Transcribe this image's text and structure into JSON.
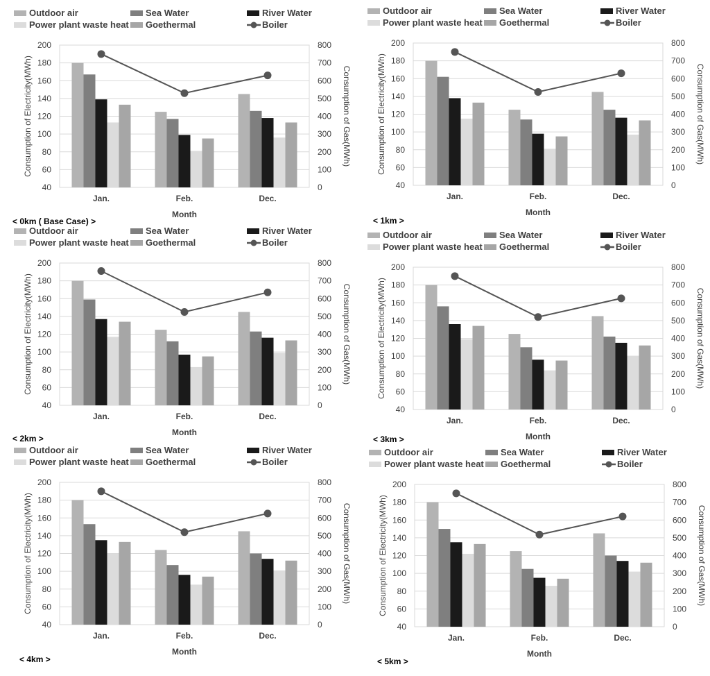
{
  "chart_data": [
    {
      "type": "bar",
      "panel_label": "< 0km ( Base Case) >",
      "categories": [
        "Jan.",
        "Feb.",
        "Dec."
      ],
      "xlabel": "Month",
      "ylabel": "Consumption of Electricity(MWh)",
      "ylabel_right": "Consumption of Gas(MWh)",
      "ylim": [
        40,
        200
      ],
      "ylim_right": [
        0,
        800
      ],
      "series": [
        {
          "name": "Outdoor air",
          "color": "#b3b3b3",
          "values": [
            180,
            125,
            145
          ]
        },
        {
          "name": "Sea Water",
          "color": "#7f7f7f",
          "values": [
            167,
            117,
            126
          ]
        },
        {
          "name": "River Water",
          "color": "#1a1a1a",
          "values": [
            139,
            99,
            118
          ]
        },
        {
          "name": "Power plant waste heat",
          "color": "#dcdcdc",
          "values": [
            113,
            81,
            96
          ]
        },
        {
          "name": "Goethermal",
          "color": "#a6a6a6",
          "values": [
            133,
            95,
            113
          ]
        }
      ],
      "line_series": {
        "name": "Boiler",
        "axis": "right",
        "color": "#555555",
        "values": [
          750,
          530,
          630
        ]
      }
    },
    {
      "type": "bar",
      "panel_label": "< 1km >",
      "categories": [
        "Jan.",
        "Feb.",
        "Dec."
      ],
      "xlabel": "Month",
      "ylabel": "Consumption of Electricity(MWh)",
      "ylabel_right": "Consumption of Gas(MWh)",
      "ylim": [
        40,
        200
      ],
      "ylim_right": [
        0,
        800
      ],
      "series": [
        {
          "name": "Outdoor air",
          "color": "#b3b3b3",
          "values": [
            180,
            125,
            145
          ]
        },
        {
          "name": "Sea Water",
          "color": "#7f7f7f",
          "values": [
            162,
            114,
            125
          ]
        },
        {
          "name": "River Water",
          "color": "#1a1a1a",
          "values": [
            138,
            98,
            116
          ]
        },
        {
          "name": "Power plant waste heat",
          "color": "#dcdcdc",
          "values": [
            115,
            81,
            97
          ]
        },
        {
          "name": "Goethermal",
          "color": "#a6a6a6",
          "values": [
            133,
            95,
            113
          ]
        }
      ],
      "line_series": {
        "name": "Boiler",
        "axis": "right",
        "color": "#555555",
        "values": [
          750,
          525,
          630
        ]
      }
    },
    {
      "type": "bar",
      "panel_label": "< 2km >",
      "categories": [
        "Jan.",
        "Feb.",
        "Dec."
      ],
      "xlabel": "Month",
      "ylabel": "Consumption of Electricity(MWh)",
      "ylabel_right": "Consumption of Gas(MWh)",
      "ylim": [
        40,
        200
      ],
      "ylim_right": [
        0,
        800
      ],
      "series": [
        {
          "name": "Outdoor air",
          "color": "#b3b3b3",
          "values": [
            180,
            125,
            145
          ]
        },
        {
          "name": "Sea Water",
          "color": "#7f7f7f",
          "values": [
            159,
            112,
            123
          ]
        },
        {
          "name": "River Water",
          "color": "#1a1a1a",
          "values": [
            137,
            97,
            116
          ]
        },
        {
          "name": "Power plant waste heat",
          "color": "#dcdcdc",
          "values": [
            117,
            83,
            99
          ]
        },
        {
          "name": "Goethermal",
          "color": "#a6a6a6",
          "values": [
            134,
            95,
            113
          ]
        }
      ],
      "line_series": {
        "name": "Boiler",
        "axis": "right",
        "color": "#555555",
        "values": [
          755,
          525,
          635
        ]
      }
    },
    {
      "type": "bar",
      "panel_label": "< 3km >",
      "categories": [
        "Jan.",
        "Feb.",
        "Dec."
      ],
      "xlabel": "Month",
      "ylabel": "Consumption of Electricity(MWh)",
      "ylabel_right": "Consumption of Gas(MWh)",
      "ylim": [
        40,
        200
      ],
      "ylim_right": [
        0,
        800
      ],
      "series": [
        {
          "name": "Outdoor air",
          "color": "#b3b3b3",
          "values": [
            180,
            125,
            145
          ]
        },
        {
          "name": "Sea Water",
          "color": "#7f7f7f",
          "values": [
            156,
            110,
            122
          ]
        },
        {
          "name": "River Water",
          "color": "#1a1a1a",
          "values": [
            136,
            96,
            115
          ]
        },
        {
          "name": "Power plant waste heat",
          "color": "#dcdcdc",
          "values": [
            119,
            84,
            100
          ]
        },
        {
          "name": "Goethermal",
          "color": "#a6a6a6",
          "values": [
            134,
            95,
            112
          ]
        }
      ],
      "line_series": {
        "name": "Boiler",
        "axis": "right",
        "color": "#555555",
        "values": [
          750,
          520,
          625
        ]
      }
    },
    {
      "type": "bar",
      "panel_label": "< 4km >",
      "categories": [
        "Jan.",
        "Feb.",
        "Dec."
      ],
      "xlabel": "Month",
      "ylabel": "Consumption of Electricity(MWh)",
      "ylabel_right": "Consumption of Gas(MWh)",
      "ylim": [
        40,
        200
      ],
      "ylim_right": [
        0,
        800
      ],
      "series": [
        {
          "name": "Outdoor air",
          "color": "#b3b3b3",
          "values": [
            180,
            124,
            145
          ]
        },
        {
          "name": "Sea Water",
          "color": "#7f7f7f",
          "values": [
            153,
            107,
            120
          ]
        },
        {
          "name": "River Water",
          "color": "#1a1a1a",
          "values": [
            135,
            96,
            114
          ]
        },
        {
          "name": "Power plant waste heat",
          "color": "#dcdcdc",
          "values": [
            120,
            85,
            101
          ]
        },
        {
          "name": "Goethermal",
          "color": "#a6a6a6",
          "values": [
            133,
            94,
            112
          ]
        }
      ],
      "line_series": {
        "name": "Boiler",
        "axis": "right",
        "color": "#555555",
        "values": [
          750,
          520,
          625
        ]
      }
    },
    {
      "type": "bar",
      "panel_label": "< 5km >",
      "categories": [
        "Jan.",
        "Feb.",
        "Dec."
      ],
      "xlabel": "Month",
      "ylabel": "Consumption of Electricity(MWh)",
      "ylabel_right": "Consumption of Gas(MWh)",
      "ylim": [
        40,
        200
      ],
      "ylim_right": [
        0,
        800
      ],
      "series": [
        {
          "name": "Outdoor air",
          "color": "#b3b3b3",
          "values": [
            180,
            125,
            145
          ]
        },
        {
          "name": "Sea Water",
          "color": "#7f7f7f",
          "values": [
            150,
            105,
            120
          ]
        },
        {
          "name": "River Water",
          "color": "#1a1a1a",
          "values": [
            135,
            95,
            114
          ]
        },
        {
          "name": "Power plant waste heat",
          "color": "#dcdcdc",
          "values": [
            122,
            86,
            102
          ]
        },
        {
          "name": "Goethermal",
          "color": "#a6a6a6",
          "values": [
            133,
            94,
            112
          ]
        }
      ],
      "line_series": {
        "name": "Boiler",
        "axis": "right",
        "color": "#555555",
        "values": [
          750,
          518,
          620
        ]
      }
    }
  ]
}
